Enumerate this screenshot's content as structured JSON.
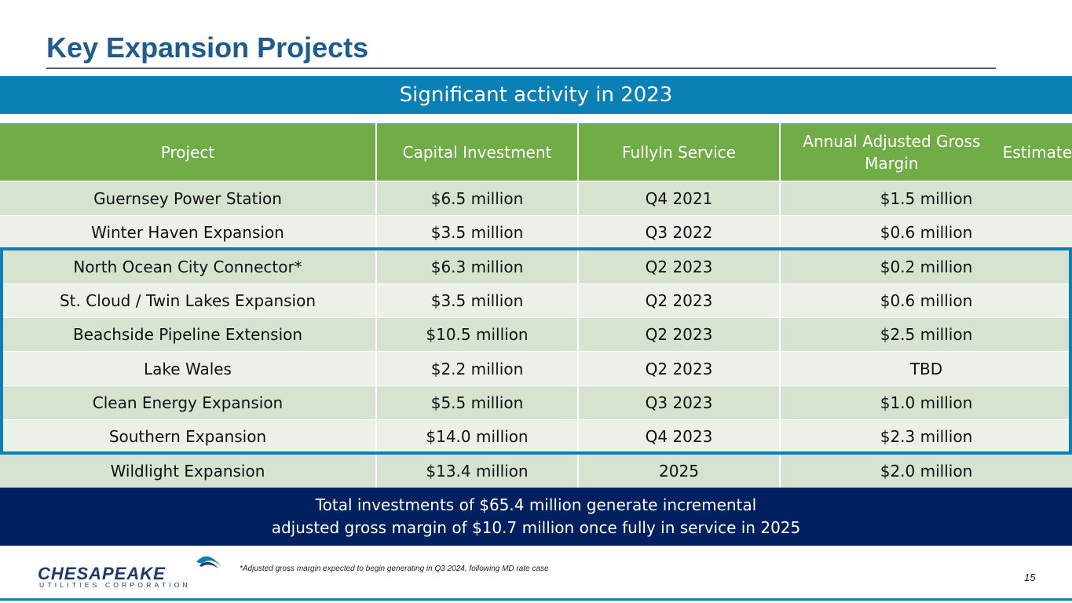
{
  "slide": {
    "title": "Key Expansion Projects",
    "banner": "Significant activity in 2023",
    "footer_line1": "Total investments of $65.4 million generate incremental",
    "footer_line2": "adjusted gross margin of $10.7 million once fully in service in 2025",
    "footnote": "*Adjusted gross margin expected to begin generating in Q3 2024, following MD rate case",
    "page_number": "15"
  },
  "logo": {
    "name": "CHESAPEAKE",
    "subtitle": "UTILITIES CORPORATION"
  },
  "table": {
    "headers": [
      [
        "Project"
      ],
      [
        "Capital Investment"
      ],
      [
        "Fully",
        "In Service"
      ],
      [
        "Annual Adjusted Gross Margin",
        "Estimate"
      ]
    ],
    "rows": [
      [
        "Guernsey Power Station",
        "$6.5 million",
        "Q4 2021",
        "$1.5 million"
      ],
      [
        "Winter Haven Expansion",
        "$3.5 million",
        "Q3 2022",
        "$0.6 million"
      ],
      [
        "North Ocean City Connector*",
        "$6.3 million",
        "Q2 2023",
        "$0.2 million"
      ],
      [
        "St. Cloud / Twin Lakes Expansion",
        "$3.5 million",
        "Q2 2023",
        "$0.6 million"
      ],
      [
        "Beachside Pipeline Extension",
        "$10.5 million",
        "Q2 2023",
        "$2.5 million"
      ],
      [
        "Lake Wales",
        "$2.2 million",
        "Q2 2023",
        "TBD"
      ],
      [
        "Clean Energy Expansion",
        "$5.5 million",
        "Q3 2023",
        "$1.0 million"
      ],
      [
        "Southern Expansion",
        "$14.0 million",
        "Q4 2023",
        "$2.3 million"
      ],
      [
        "Wildlight Expansion",
        "$13.4 million",
        "2025",
        "$2.0 million"
      ]
    ]
  },
  "colors": {
    "title": "#1f5c8e",
    "banner": "#0a80b4",
    "header": "#70ad47",
    "row_dark": "#d6e3d0",
    "row_light": "#ebf1e9",
    "footer": "#002060"
  }
}
